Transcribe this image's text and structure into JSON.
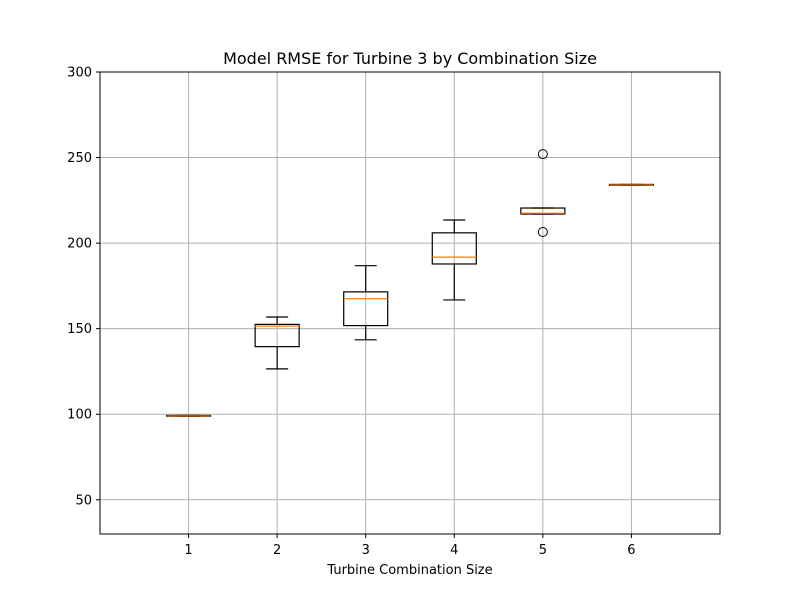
{
  "chart_data": {
    "type": "boxplot",
    "title": "Model RMSE for Turbine 3 by Combination Size",
    "xlabel": "Turbine Combination Size",
    "ylabel": "",
    "categories": [
      "1",
      "2",
      "3",
      "4",
      "5",
      "6"
    ],
    "ylim": [
      30,
      300
    ],
    "yticks": [
      50,
      100,
      150,
      200,
      250,
      300
    ],
    "grid": true,
    "colors": {
      "box": "#000000",
      "median": "#ff7f0e",
      "grid": "#b0b0b0"
    },
    "boxes": [
      {
        "category": "1",
        "whisker_low": 98.8,
        "q1": 98.8,
        "median": 99.0,
        "q3": 99.3,
        "whisker_high": 99.3,
        "outliers": []
      },
      {
        "category": "2",
        "whisker_low": 126.5,
        "q1": 139.5,
        "median": 151.5,
        "q3": 152.5,
        "whisker_high": 156.8,
        "outliers": []
      },
      {
        "category": "3",
        "whisker_low": 143.5,
        "q1": 151.8,
        "median": 167.5,
        "q3": 171.5,
        "whisker_high": 186.8,
        "outliers": []
      },
      {
        "category": "4",
        "whisker_low": 166.8,
        "q1": 187.8,
        "median": 191.8,
        "q3": 206.0,
        "whisker_high": 213.5,
        "outliers": []
      },
      {
        "category": "5",
        "whisker_low": 217.0,
        "q1": 217.0,
        "median": 217.5,
        "q3": 220.5,
        "whisker_high": 220.5,
        "outliers": [
          252.0,
          206.5
        ]
      },
      {
        "category": "6",
        "whisker_low": 233.8,
        "q1": 233.8,
        "median": 234.0,
        "q3": 234.3,
        "whisker_high": 234.3,
        "outliers": []
      }
    ]
  }
}
